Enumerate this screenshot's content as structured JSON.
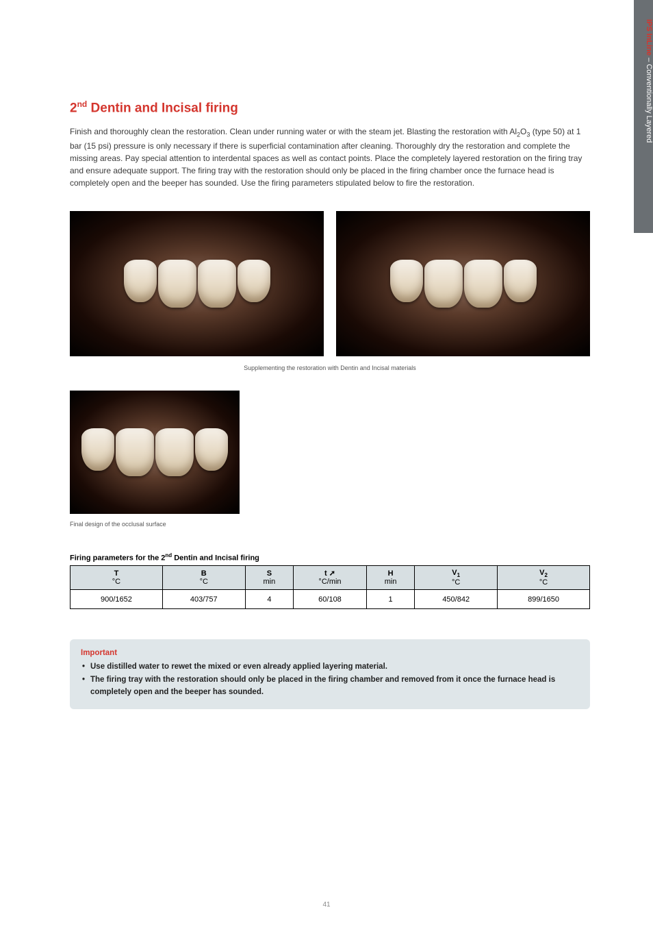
{
  "sideTab": {
    "product": "IPS InLine",
    "separator": " – ",
    "rest": "Conventionally Layered"
  },
  "title": "2<sup>nd</sup> Dentin and Incisal firing",
  "body": "Finish and thoroughly clean the restoration. Clean under running water or with the steam jet. Blasting the restoration with Al<sub>2</sub>O<sub>3</sub> (type 50) at 1 bar (15 psi) pressure is only necessary if there is superficial contamination after cleaning. Thoroughly dry the restoration and complete the missing areas. Pay special attention to interdental spaces as well as contact points. Place the completely layered restoration on the firing tray and ensure adequate support. The firing tray with the restoration should only be placed in the firing chamber once the furnace head is completely open and the beeper has sounded. Use the firing parameters stipulated below to fire the restoration.",
  "caption1": "Supplementing the restoration with Dentin and Incisal materials",
  "caption2": "Final design of the occlusal surface",
  "tableHeading": "Firing parameters for the 2<sup>nd</sup>  Dentin and Incisal firing",
  "table": {
    "headers": [
      {
        "main": "T",
        "unit": "°C"
      },
      {
        "main": "B",
        "unit": "°C"
      },
      {
        "main": "S",
        "unit": "min"
      },
      {
        "main": "t ➚",
        "unit": "°C/min"
      },
      {
        "main": "H",
        "unit": "min"
      },
      {
        "main": "V<sub>1</sub>",
        "unit": "°C"
      },
      {
        "main": "V<sub>2</sub>",
        "unit": "°C"
      }
    ],
    "row": [
      "900/1652",
      "403/757",
      "4",
      "60/108",
      "1",
      "450/842",
      "899/1650"
    ]
  },
  "important": {
    "title": "Important",
    "bullets": [
      "Use distilled water to rewet the mixed or even already applied layering material.",
      "The firing tray with the restoration should only be placed in the firing chamber and removed from it once the furnace head is completely open and the beeper has sounded."
    ]
  },
  "pageNumber": "41"
}
